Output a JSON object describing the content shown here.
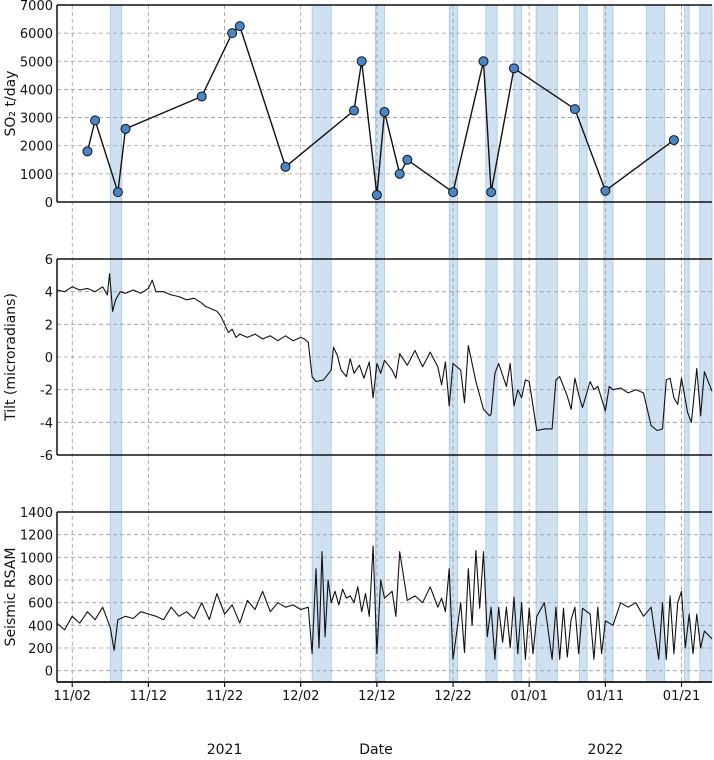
{
  "chart_data": {
    "type": "line",
    "xlabel": "Date",
    "x_start": "2021-10-31",
    "x_end": "2022-01-25",
    "x_ticks": [
      {
        "date": "2021-11-02",
        "label": "11/02"
      },
      {
        "date": "2021-11-12",
        "label": "11/12"
      },
      {
        "date": "2021-11-22",
        "label": "11/22"
      },
      {
        "date": "2021-12-02",
        "label": "12/02"
      },
      {
        "date": "2021-12-12",
        "label": "12/12"
      },
      {
        "date": "2021-12-22",
        "label": "12/22"
      },
      {
        "date": "2022-01-01",
        "label": "01/01"
      },
      {
        "date": "2022-01-11",
        "label": "01/11"
      },
      {
        "date": "2022-01-21",
        "label": "01/21"
      }
    ],
    "year_labels": [
      {
        "date": "2021-11-22",
        "label": "2021"
      },
      {
        "date": "2022-01-11",
        "label": "2022"
      }
    ],
    "shaded_periods": [
      {
        "start": "2021-11-07",
        "end": "2021-11-08.5"
      },
      {
        "start": "2021-12-03.5",
        "end": "2021-12-06"
      },
      {
        "start": "2021-12-11.8",
        "end": "2021-12-13"
      },
      {
        "start": "2021-12-21.5",
        "end": "2021-12-22.6"
      },
      {
        "start": "2021-12-26.3",
        "end": "2021-12-27.8"
      },
      {
        "start": "2021-12-30",
        "end": "2021-12-31"
      },
      {
        "start": "2022-01-01.9",
        "end": "2022-01-04.7"
      },
      {
        "start": "2022-01-07.6",
        "end": "2022-01-08.6"
      },
      {
        "start": "2022-01-10.8",
        "end": "2022-01-12"
      },
      {
        "start": "2022-01-16.4",
        "end": "2022-01-18.8"
      },
      {
        "start": "2022-01-21.4",
        "end": "2022-01-22"
      },
      {
        "start": "2022-01-23.4",
        "end": "2022-01-25"
      }
    ],
    "panels": [
      {
        "ylabel": "SO₂ t/day",
        "ylim": [
          0,
          7000
        ],
        "yticks": [
          0,
          1000,
          2000,
          3000,
          4000,
          5000,
          6000,
          7000
        ],
        "series": [
          {
            "style": "line-markers",
            "x": [
              "2021-11-04",
              "2021-11-05",
              "2021-11-08",
              "2021-11-09",
              "2021-11-19",
              "2021-11-23",
              "2021-11-24",
              "2021-11-30",
              "2021-12-09",
              "2021-12-10",
              "2021-12-12",
              "2021-12-13",
              "2021-12-15",
              "2021-12-16",
              "2021-12-22",
              "2021-12-26",
              "2021-12-27",
              "2021-12-30",
              "2022-01-07",
              "2022-01-11",
              "2022-01-20"
            ],
            "y": [
              1800,
              2900,
              350,
              2600,
              3750,
              6000,
              6250,
              1250,
              3250,
              5000,
              250,
              3200,
              1000,
              1500,
              350,
              5000,
              350,
              4750,
              3300,
              400,
              2200
            ]
          }
        ]
      },
      {
        "ylabel": "Tilt (microradians)",
        "ylim": [
          -6,
          6
        ],
        "yticks": [
          -6,
          -4,
          -2,
          0,
          2,
          4,
          6
        ],
        "series": [
          {
            "style": "line",
            "x": [
              "2021-10-31",
              "2021-11-01",
              "2021-11-02",
              "2021-11-03",
              "2021-11-04",
              "2021-11-05",
              "2021-11-06",
              "2021-11-06.6",
              "2021-11-06.9",
              "2021-11-07.3",
              "2021-11-07.7",
              "2021-11-08.3",
              "2021-11-09",
              "2021-11-10",
              "2021-11-11",
              "2021-11-12",
              "2021-11-12.5",
              "2021-11-13",
              "2021-11-14",
              "2021-11-15",
              "2021-11-16",
              "2021-11-17",
              "2021-11-18",
              "2021-11-19",
              "2021-11-19.5",
              "2021-11-20",
              "2021-11-21",
              "2021-11-21.5",
              "2021-11-22",
              "2021-11-22.5",
              "2021-11-23",
              "2021-11-23.5",
              "2021-11-24",
              "2021-11-25",
              "2021-11-26",
              "2021-11-27",
              "2021-11-28",
              "2021-11-29",
              "2021-11-30",
              "2021-12-01",
              "2021-12-02",
              "2021-12-02.5",
              "2021-12-03",
              "2021-12-03.5",
              "2021-12-04",
              "2021-12-05",
              "2021-12-06",
              "2021-12-06.3",
              "2021-12-06.8",
              "2021-12-07.3",
              "2021-12-08",
              "2021-12-08.5",
              "2021-12-09",
              "2021-12-09.7",
              "2021-12-10.3",
              "2021-12-11",
              "2021-12-11.5",
              "2021-12-12",
              "2021-12-12.5",
              "2021-12-13",
              "2021-12-14",
              "2021-12-14.5",
              "2021-12-15",
              "2021-12-16",
              "2021-12-17",
              "2021-12-18",
              "2021-12-19",
              "2021-12-20",
              "2021-12-20.5",
              "2021-12-21",
              "2021-12-21.5",
              "2021-12-22",
              "2021-12-23",
              "2021-12-23.5",
              "2021-12-24",
              "2021-12-25",
              "2021-12-26",
              "2021-12-26.8",
              "2021-12-27",
              "2021-12-27.5",
              "2021-12-28",
              "2021-12-29",
              "2021-12-29.5",
              "2021-12-30",
              "2021-12-30.5",
              "2021-12-31",
              "2021-12-31.5",
              "2022-01-01",
              "2022-01-02",
              "2022-01-03",
              "2022-01-04",
              "2022-01-04.5",
              "2022-01-05",
              "2022-01-06",
              "2022-01-06.5",
              "2022-01-07",
              "2022-01-07.5",
              "2022-01-08",
              "2022-01-09",
              "2022-01-09.5",
              "2022-01-10",
              "2022-01-11",
              "2022-01-11.5",
              "2022-01-12",
              "2022-01-13",
              "2022-01-14",
              "2022-01-15",
              "2022-01-16",
              "2022-01-17",
              "2022-01-17.8",
              "2022-01-18.5",
              "2022-01-19",
              "2022-01-19.5",
              "2022-01-20",
              "2022-01-20.5",
              "2022-01-21",
              "2022-01-21.8",
              "2022-01-22.3",
              "2022-01-23",
              "2022-01-23.5",
              "2022-01-24",
              "2022-01-25"
            ],
            "y": [
              4.1,
              4.0,
              4.3,
              4.1,
              4.2,
              4.0,
              4.3,
              3.8,
              5.1,
              2.8,
              3.5,
              4.0,
              3.9,
              4.1,
              3.9,
              4.2,
              4.7,
              4.0,
              4.0,
              3.8,
              3.7,
              3.5,
              3.6,
              3.3,
              3.1,
              3.0,
              2.8,
              2.5,
              2.0,
              1.5,
              1.7,
              1.2,
              1.4,
              1.2,
              1.4,
              1.1,
              1.3,
              1.0,
              1.3,
              1.0,
              1.2,
              1.1,
              0.9,
              -1.2,
              -1.5,
              -1.4,
              -0.8,
              0.6,
              0.1,
              -0.8,
              -1.2,
              -0.1,
              -1.0,
              -0.5,
              -1.3,
              -0.3,
              -2.5,
              -0.4,
              -1.0,
              -0.2,
              -0.8,
              -1.3,
              0.2,
              -0.5,
              0.4,
              -0.6,
              0.3,
              -0.6,
              -1.7,
              -0.3,
              -3.0,
              -0.4,
              -0.8,
              -2.8,
              0.7,
              -1.5,
              -3.2,
              -3.6,
              -3.5,
              -1.0,
              -0.4,
              -1.8,
              -0.4,
              -3.0,
              -2.0,
              -2.5,
              -1.4,
              -1.5,
              -4.5,
              -4.4,
              -4.4,
              -1.4,
              -1.2,
              -2.4,
              -3.2,
              -1.3,
              -2.3,
              -3.1,
              -1.5,
              -2.0,
              -1.8,
              -3.3,
              -1.8,
              -2.0,
              -1.9,
              -2.2,
              -2.0,
              -2.2,
              -4.2,
              -4.5,
              -4.4,
              -1.4,
              -1.3,
              -2.5,
              -2.9,
              -1.3,
              -3.4,
              -4.0,
              -0.7,
              -3.6,
              -0.9,
              -2.1
            ]
          }
        ]
      },
      {
        "ylabel": "Seismic RSAM",
        "ylim": [
          -100,
          1400
        ],
        "yticks": [
          0,
          200,
          400,
          600,
          800,
          1000,
          1200,
          1400
        ],
        "series": [
          {
            "style": "line",
            "x": [
              "2021-10-31",
              "2021-11-01",
              "2021-11-02",
              "2021-11-03",
              "2021-11-04",
              "2021-11-05",
              "2021-11-06",
              "2021-11-07",
              "2021-11-07.5",
              "2021-11-08",
              "2021-11-09",
              "2021-11-10",
              "2021-11-11",
              "2021-11-12",
              "2021-11-13",
              "2021-11-14",
              "2021-11-15",
              "2021-11-16",
              "2021-11-17",
              "2021-11-18",
              "2021-11-19",
              "2021-11-20",
              "2021-11-21",
              "2021-11-22",
              "2021-11-23",
              "2021-11-24",
              "2021-11-25",
              "2021-11-26",
              "2021-11-27",
              "2021-11-28",
              "2021-11-29",
              "2021-11-30",
              "2021-12-01",
              "2021-12-02",
              "2021-12-03",
              "2021-12-03.5",
              "2021-12-04",
              "2021-12-04.4",
              "2021-12-04.8",
              "2021-12-05.2",
              "2021-12-05.6",
              "2021-12-06",
              "2021-12-06.5",
              "2021-12-07",
              "2021-12-07.5",
              "2021-12-08",
              "2021-12-08.5",
              "2021-12-09",
              "2021-12-09.5",
              "2021-12-10",
              "2021-12-10.5",
              "2021-12-11",
              "2021-12-11.5",
              "2021-12-12",
              "2021-12-12.5",
              "2021-12-13",
              "2021-12-14",
              "2021-12-14.5",
              "2021-12-15",
              "2021-12-16",
              "2021-12-17",
              "2021-12-18",
              "2021-12-19",
              "2021-12-20",
              "2021-12-20.5",
              "2021-12-21",
              "2021-12-21.5",
              "2021-12-22",
              "2021-12-23",
              "2021-12-23.5",
              "2021-12-24",
              "2021-12-24.5",
              "2021-12-25",
              "2021-12-25.5",
              "2021-12-26",
              "2021-12-26.5",
              "2021-12-27",
              "2021-12-27.5",
              "2021-12-28",
              "2021-12-28.5",
              "2021-12-29",
              "2021-12-29.5",
              "2021-12-30",
              "2021-12-30.5",
              "2021-12-31",
              "2021-12-31.5",
              "2022-01-01",
              "2022-01-01.5",
              "2022-01-02",
              "2022-01-03",
              "2022-01-04",
              "2022-01-04.5",
              "2022-01-05",
              "2022-01-05.5",
              "2022-01-06",
              "2022-01-06.5",
              "2022-01-07",
              "2022-01-07.5",
              "2022-01-08",
              "2022-01-09",
              "2022-01-09.5",
              "2022-01-10",
              "2022-01-10.5",
              "2022-01-11",
              "2022-01-12",
              "2022-01-13",
              "2022-01-14",
              "2022-01-15",
              "2022-01-16",
              "2022-01-17",
              "2022-01-18",
              "2022-01-18.5",
              "2022-01-19",
              "2022-01-19.5",
              "2022-01-20",
              "2022-01-20.5",
              "2022-01-21",
              "2022-01-21.5",
              "2022-01-22",
              "2022-01-22.5",
              "2022-01-23",
              "2022-01-23.5",
              "2022-01-24",
              "2022-01-25"
            ],
            "y": [
              420,
              360,
              480,
              420,
              520,
              450,
              560,
              380,
              180,
              450,
              480,
              460,
              520,
              500,
              480,
              450,
              560,
              480,
              520,
              460,
              600,
              450,
              680,
              500,
              580,
              420,
              620,
              540,
              700,
              520,
              600,
              560,
              580,
              540,
              560,
              150,
              900,
              200,
              1050,
              300,
              800,
              600,
              700,
              580,
              720,
              640,
              660,
              600,
              740,
              520,
              680,
              480,
              1100,
              150,
              800,
              640,
              700,
              480,
              1050,
              620,
              660,
              600,
              740,
              560,
              640,
              520,
              900,
              100,
              600,
              160,
              900,
              400,
              1060,
              550,
              1050,
              300,
              560,
              100,
              560,
              250,
              560,
              200,
              650,
              150,
              600,
              100,
              550,
              150,
              480,
              600,
              100,
              560,
              100,
              550,
              120,
              450,
              560,
              150,
              550,
              500,
              100,
              560,
              150,
              440,
              400,
              600,
              560,
              600,
              480,
              560,
              100,
              600,
              100,
              660,
              150,
              600,
              700,
              200,
              500,
              150,
              500,
              200,
              350,
              280
            ]
          }
        ]
      }
    ]
  }
}
